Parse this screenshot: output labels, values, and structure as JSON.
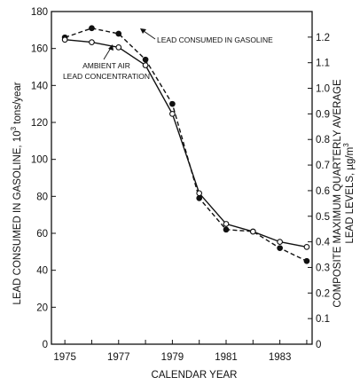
{
  "chart_data": {
    "type": "line",
    "title": "",
    "xlabel": "CALENDAR YEAR",
    "ylabel_left": "LEAD CONSUMED IN GASOLINE, 10³ tons/year",
    "ylabel_left_main": "LEAD CONSUMED IN GASOLINE, 10",
    "ylabel_left_sup": "3",
    "ylabel_left_unit": " tons/year",
    "ylabel_right_line1": "COMPOSITE MAXIMUM QUARTERLY AVERAGE",
    "ylabel_right_line2": "LEAD LEVELS, µg/m³",
    "ylabel_right_line2_main": "LEAD LEVELS, µg/m",
    "ylabel_right_line2_sup": "3",
    "x_range": [
      1974.5,
      1984.2
    ],
    "x_ticks": [
      1975,
      1977,
      1979,
      1981,
      1983
    ],
    "ylim_left": [
      0,
      180
    ],
    "y_ticks_left": [
      0,
      20,
      40,
      60,
      80,
      100,
      120,
      140,
      160,
      180
    ],
    "ylim_right": [
      0,
      1.3
    ],
    "y_ticks_right": [
      "0",
      "0.1",
      "0.2",
      "0.3",
      "0.4",
      "0.5",
      "0.6",
      "0.7",
      "0.8",
      "0.9",
      "1.0",
      "1.1",
      "1.2"
    ],
    "grid": false,
    "series": [
      {
        "name": "LEAD CONSUMED IN GASOLINE",
        "axis": "left",
        "style": "dashed",
        "marker": "filled-circle",
        "x": [
          1975,
          1976,
          1977,
          1978,
          1979,
          1980,
          1981,
          1982,
          1983,
          1984
        ],
        "y": [
          166,
          171,
          168,
          154,
          130,
          79,
          62,
          61,
          52,
          45
        ]
      },
      {
        "name": "AMBIENT AIR LEAD CONCENTRATION",
        "axis": "right",
        "style": "solid",
        "marker": "open-circle",
        "x": [
          1975,
          1976,
          1977,
          1978,
          1979,
          1980,
          1981,
          1982,
          1983,
          1984
        ],
        "y": [
          1.19,
          1.18,
          1.16,
          1.09,
          0.9,
          0.59,
          0.47,
          0.44,
          0.4,
          0.38
        ]
      }
    ],
    "annotations": [
      {
        "lines": [
          "LEAD CONSUMED IN GASOLINE"
        ]
      },
      {
        "lines": [
          "AMBIENT AIR",
          "LEAD CONCENTRATION"
        ]
      }
    ]
  }
}
